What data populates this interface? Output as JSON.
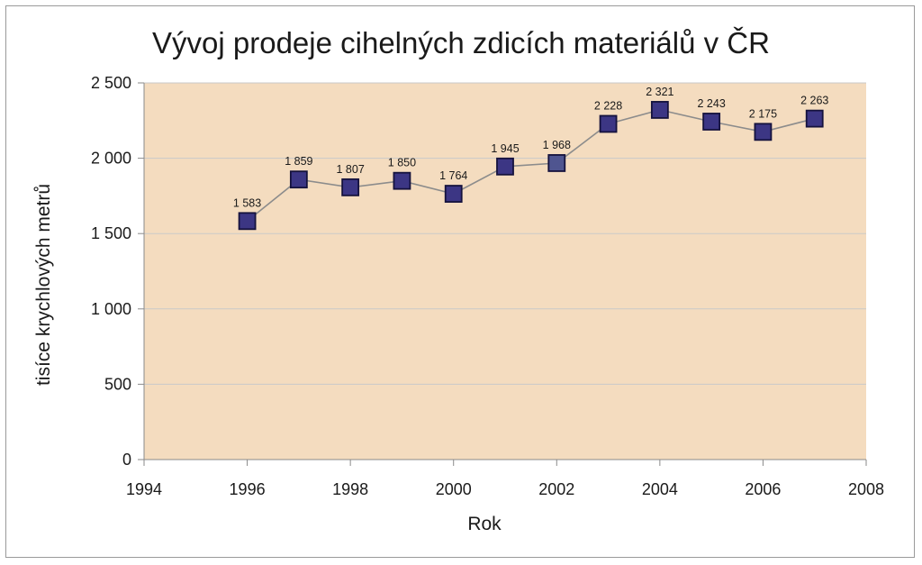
{
  "chart_data": {
    "type": "line",
    "title": "Vývoj prodeje cihelných zdicích materiálů v ČR",
    "xlabel": "Rok",
    "ylabel": "tisíce krychlových metrů",
    "xlim": [
      1994,
      2008
    ],
    "ylim": [
      0,
      2500
    ],
    "x_ticks": [
      1994,
      1996,
      1998,
      2000,
      2002,
      2004,
      2006,
      2008
    ],
    "y_ticks": [
      0,
      500,
      1000,
      1500,
      2000,
      2500
    ],
    "x_tick_labels": [
      "1994",
      "1996",
      "1998",
      "2000",
      "2002",
      "2004",
      "2006",
      "2008"
    ],
    "y_tick_labels": [
      "0",
      "500",
      "1 000",
      "1 500",
      "2 000",
      "2 500"
    ],
    "grid": "horizontal",
    "legend": "none",
    "colors": {
      "plot_background": "#f4dcbf",
      "marker_fill": "#3c3684",
      "marker_highlight_fill": "#4f5590",
      "line": "#8c8c8c",
      "grid": "#c9c9c9"
    },
    "series": [
      {
        "x": [
          1996,
          1997,
          1998,
          1999,
          2000,
          2001,
          2002,
          2003,
          2004,
          2005,
          2006,
          2007
        ],
        "values": [
          1583,
          1859,
          1807,
          1850,
          1764,
          1945,
          1968,
          2228,
          2321,
          2243,
          2175,
          2263
        ],
        "data_labels": [
          "1 583",
          "1 859",
          "1 807",
          "1 850",
          "1 764",
          "1 945",
          "1 968",
          "2 228",
          "2 321",
          "2 243",
          "2 175",
          "2 263"
        ]
      }
    ]
  }
}
